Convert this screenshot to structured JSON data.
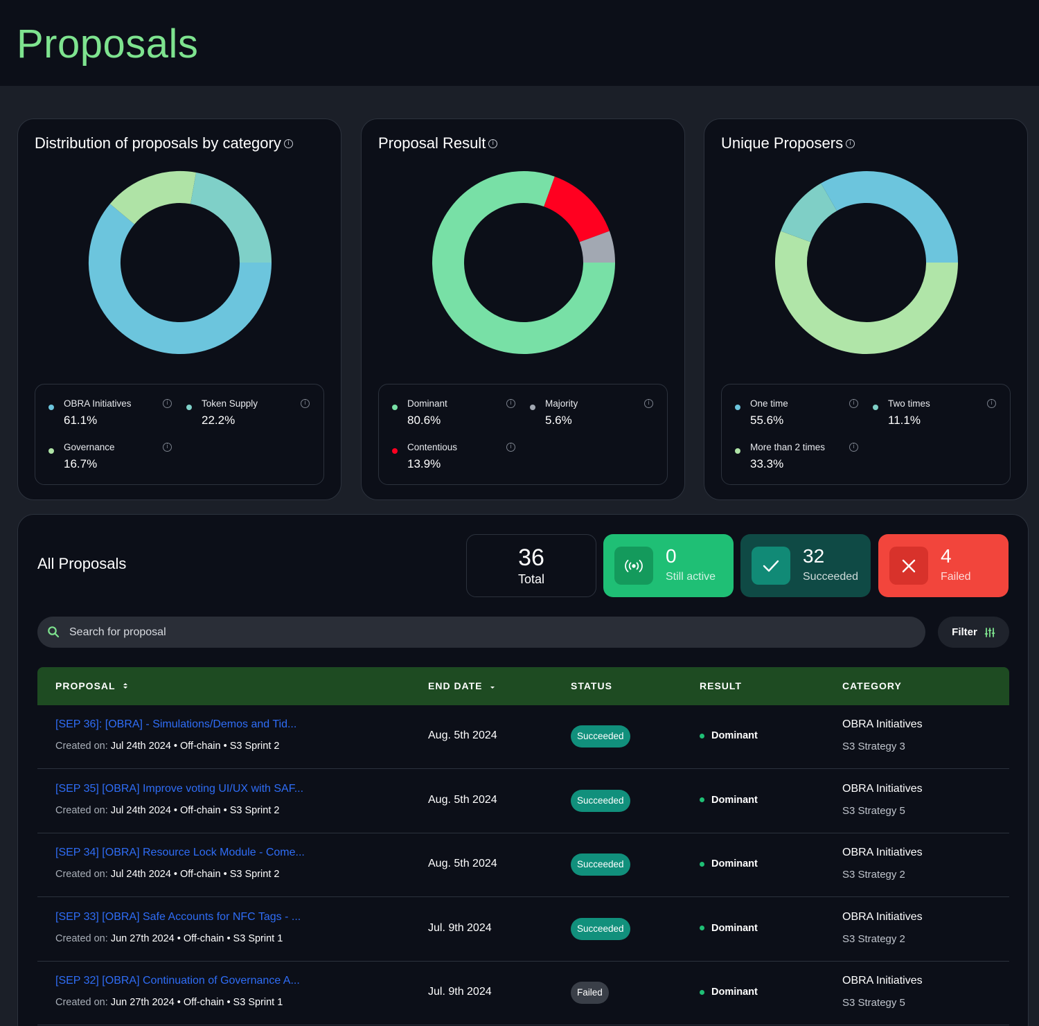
{
  "page": {
    "title": "Proposals"
  },
  "cards": [
    {
      "title": "Distribution of proposals by category",
      "segments": [
        {
          "label": "OBRA Initiatives",
          "value": "61.1%",
          "pct": 61.1,
          "color": "#6cc5dd"
        },
        {
          "label": "Token Supply",
          "value": "22.2%",
          "pct": 22.2,
          "color": "#7fd0c8"
        },
        {
          "label": "Governance",
          "value": "16.7%",
          "pct": 16.7,
          "color": "#afe3a6"
        }
      ],
      "order": [
        0,
        2,
        1
      ]
    },
    {
      "title": "Proposal Result",
      "segments": [
        {
          "label": "Dominant",
          "value": "80.6%",
          "pct": 80.6,
          "color": "#78e0a6"
        },
        {
          "label": "Majority",
          "value": "5.6%",
          "pct": 5.6,
          "color": "#a2a8b2"
        },
        {
          "label": "Contentious",
          "value": "13.9%",
          "pct": 13.9,
          "color": "#ff0020"
        }
      ],
      "order": [
        0,
        2,
        1
      ]
    },
    {
      "title": "Unique Proposers",
      "segments": [
        {
          "label": "One time",
          "value": "55.6%",
          "pct": 55.6,
          "color": "#b0e5a8"
        },
        {
          "label": "Two times",
          "value": "11.1%",
          "pct": 11.1,
          "color": "#7fcfc6"
        },
        {
          "label": "More than 2 times",
          "value": "33.3%",
          "pct": 33.3,
          "color": "#6cc5dd"
        }
      ],
      "order": [
        0,
        1,
        2
      ]
    }
  ],
  "all_proposals": {
    "title": "All Proposals",
    "stats": {
      "total": {
        "value": "36",
        "label": "Total"
      },
      "active": {
        "value": "0",
        "label": "Still active",
        "icon": "broadcast-icon"
      },
      "succeeded": {
        "value": "32",
        "label": "Succeeded",
        "icon": "check-icon"
      },
      "failed": {
        "value": "4",
        "label": "Failed",
        "icon": "close-icon"
      }
    },
    "search": {
      "placeholder": "Search for proposal"
    },
    "filter_label": "Filter",
    "columns": [
      "PROPOSAL",
      "END DATE",
      "STATUS",
      "RESULT",
      "CATEGORY"
    ],
    "rows": [
      {
        "title": "[SEP 36]: [OBRA] - Simulations/Demos and Tid...",
        "created_prefix": "Created on:",
        "created": "Jul 24th 2024 • Off-chain • S3 Sprint 2",
        "end_date": "Aug. 5th 2024",
        "status": "Succeeded",
        "result": "Dominant",
        "category": "OBRA Initiatives",
        "strategy": "S3 Strategy 3"
      },
      {
        "title": "[SEP 35] [OBRA] Improve voting UI/UX with SAF...",
        "created_prefix": "Created on:",
        "created": "Jul 24th 2024 • Off-chain • S3 Sprint 2",
        "end_date": "Aug. 5th 2024",
        "status": "Succeeded",
        "result": "Dominant",
        "category": "OBRA Initiatives",
        "strategy": "S3 Strategy 5"
      },
      {
        "title": "[SEP 34] [OBRA] Resource Lock Module - Come...",
        "created_prefix": "Created on:",
        "created": "Jul 24th 2024 • Off-chain • S3 Sprint 2",
        "end_date": "Aug. 5th 2024",
        "status": "Succeeded",
        "result": "Dominant",
        "category": "OBRA Initiatives",
        "strategy": "S3 Strategy 2"
      },
      {
        "title": "[SEP 33] [OBRA] Safe Accounts for NFC Tags - ...",
        "created_prefix": "Created on:",
        "created": "Jun 27th 2024 • Off-chain • S3 Sprint 1",
        "end_date": "Jul. 9th 2024",
        "status": "Succeeded",
        "result": "Dominant",
        "category": "OBRA Initiatives",
        "strategy": "S3 Strategy 2"
      },
      {
        "title": "[SEP 32] [OBRA] Continuation of Governance A...",
        "created_prefix": "Created on:",
        "created": "Jun 27th 2024 • Off-chain • S3 Sprint 1",
        "end_date": "Jul. 9th 2024",
        "status": "Failed",
        "result": "Dominant",
        "category": "OBRA Initiatives",
        "strategy": "S3 Strategy 5"
      }
    ]
  }
}
